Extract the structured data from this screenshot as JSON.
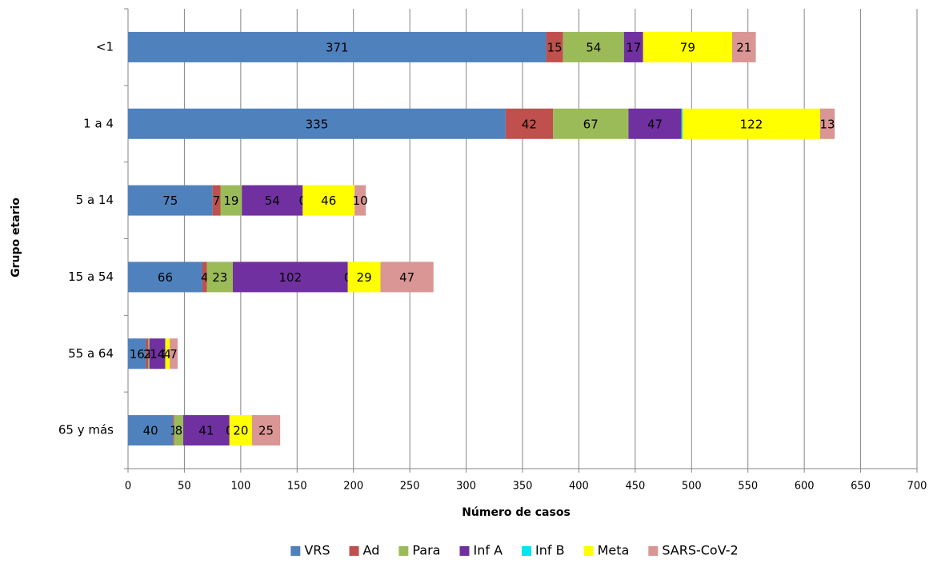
{
  "chart_data": {
    "type": "stacked-barh",
    "x_label": "Número de casos",
    "y_label": "Grupo etario",
    "categories": [
      "<1",
      "1 a 4",
      "5 a 14",
      "15 a 54",
      "55 a 64",
      "65 y más"
    ],
    "series": [
      {
        "name": "VRS",
        "color": "#4f81bd",
        "values": [
          371,
          335,
          75,
          66,
          16,
          40
        ]
      },
      {
        "name": "Ad",
        "color": "#c0504d",
        "values": [
          15,
          42,
          7,
          4,
          2,
          1
        ]
      },
      {
        "name": "Para",
        "color": "#9bbb59",
        "values": [
          54,
          67,
          19,
          23,
          1,
          8
        ]
      },
      {
        "name": "Inf A",
        "color": "#7030a0",
        "values": [
          17,
          47,
          54,
          102,
          14,
          41
        ]
      },
      {
        "name": "Inf B",
        "color": "#00e5ef",
        "values": [
          0,
          1,
          0,
          0,
          0,
          0
        ],
        "value_labels": [
          null,
          null,
          "0",
          "0",
          "0",
          "0"
        ]
      },
      {
        "name": "Meta",
        "color": "#ffff00",
        "values": [
          79,
          122,
          46,
          29,
          4,
          20
        ]
      },
      {
        "name": "SARS-CoV-2",
        "color": "#d99694",
        "values": [
          21,
          13,
          10,
          47,
          7,
          25
        ]
      }
    ],
    "xlim": [
      0,
      700
    ],
    "xticks": [
      0,
      50,
      100,
      150,
      200,
      250,
      300,
      350,
      400,
      450,
      500,
      550,
      600,
      650,
      700
    ],
    "grid": true,
    "legend": "bottom"
  }
}
